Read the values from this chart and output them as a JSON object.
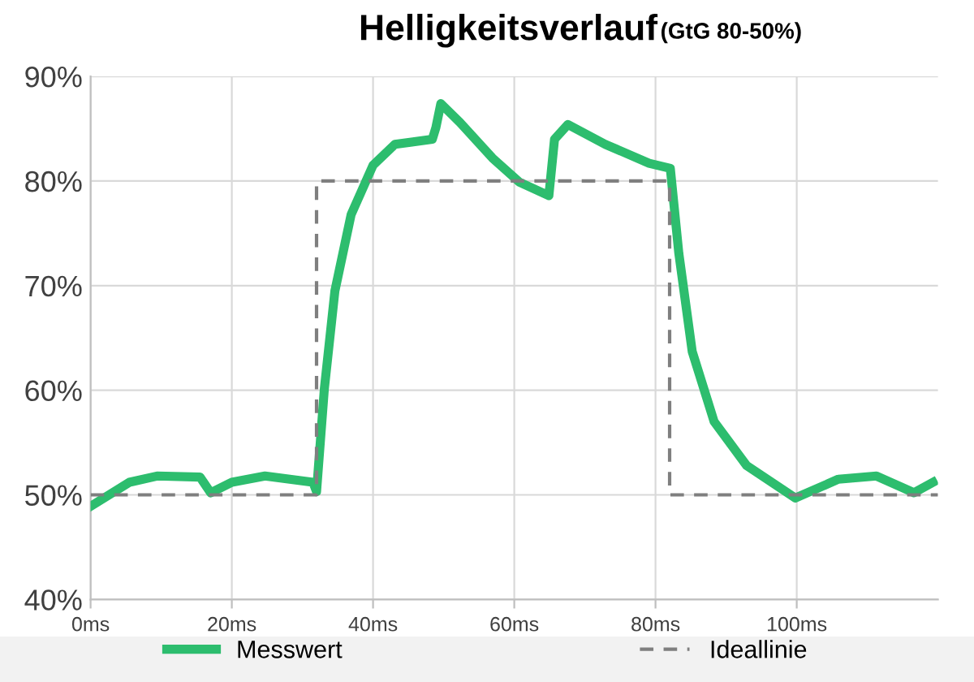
{
  "chart_data": {
    "type": "line",
    "title": "Helligkeitsverlauf",
    "subtitle": "(GtG 80-50%)",
    "xlim": [
      0,
      120
    ],
    "xticks": [
      {
        "value": 0,
        "label": "0ms"
      },
      {
        "value": 20,
        "label": "20ms"
      },
      {
        "value": 40,
        "label": "40ms"
      },
      {
        "value": 60,
        "label": "60ms"
      },
      {
        "value": 80,
        "label": "80ms"
      },
      {
        "value": 100,
        "label": "100ms"
      }
    ],
    "ylim": [
      40,
      90
    ],
    "yticks": [
      {
        "value": 40,
        "label": "40%"
      },
      {
        "value": 50,
        "label": "50%"
      },
      {
        "value": 60,
        "label": "60%"
      },
      {
        "value": 70,
        "label": "70%"
      },
      {
        "value": 80,
        "label": "80%"
      },
      {
        "value": 90,
        "label": "90%"
      }
    ],
    "grid": true,
    "legend": "bottom",
    "series": [
      {
        "name": "Messwert",
        "color": "#2dbd6e",
        "line_style": "solid",
        "x": [
          0,
          5.5,
          9.4,
          15.5,
          17,
          20,
          24.7,
          31.5,
          32,
          33.1,
          34.6,
          36.9,
          40,
          43.1,
          48.4,
          48.9,
          49.6,
          52.3,
          56.9,
          60.7,
          64.9,
          65.7,
          67.6,
          72.9,
          79.1,
          82.1,
          83.3,
          85.2,
          88.3,
          92.9,
          99.8,
          105.9,
          111.3,
          116.6,
          119.3
        ],
        "values": [
          48.9,
          51.2,
          51.8,
          51.7,
          50.2,
          51.2,
          51.8,
          51.2,
          50.3,
          60.1,
          69.5,
          76.8,
          81.5,
          83.5,
          84.0,
          85.1,
          87.4,
          85.6,
          82.2,
          79.9,
          78.6,
          84.0,
          85.4,
          83.5,
          81.7,
          81.2,
          73.1,
          63.7,
          57.0,
          52.8,
          49.7,
          51.5,
          51.8,
          50.2,
          51.2
        ]
      },
      {
        "name": "Ideallinie",
        "color": "#7f7f7f",
        "line_style": "dashed",
        "x": [
          0,
          32,
          32,
          82,
          82,
          120
        ],
        "values": [
          50,
          50,
          80,
          80,
          50,
          50
        ]
      }
    ]
  }
}
